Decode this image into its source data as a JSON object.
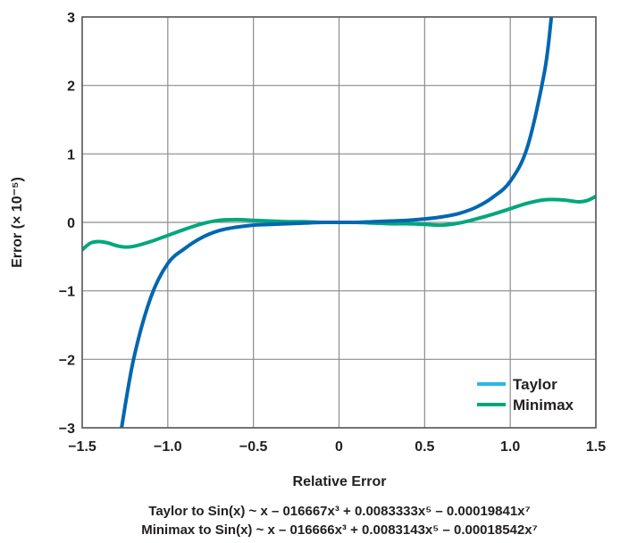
{
  "chart_data": {
    "type": "line",
    "xlabel": "Relative Error",
    "ylabel": "Error (× 10⁻⁵)",
    "xlim": [
      -1.5,
      1.5
    ],
    "ylim": [
      -3,
      3
    ],
    "xticks": [
      -1.5,
      -1.0,
      -0.5,
      0,
      0.5,
      1.0,
      1.5
    ],
    "xtick_labels": [
      "−1.5",
      "−1.0",
      "−0.5",
      "0",
      "0.5",
      "1.0",
      "1.5"
    ],
    "yticks": [
      -3,
      -2,
      -1,
      0,
      1,
      2,
      3
    ],
    "ytick_labels": [
      "−3",
      "−2",
      "−1",
      "0",
      "1",
      "2",
      "3"
    ],
    "grid": true,
    "legend_position": "bottom-right",
    "series": [
      {
        "name": "Taylor",
        "color": "#0067b1",
        "legend_color": "#29b8e5",
        "x": [
          -1.27,
          -1.2,
          -1.1,
          -1.0,
          -0.9,
          -0.8,
          -0.7,
          -0.6,
          -0.5,
          -0.4,
          -0.3,
          -0.2,
          -0.1,
          0,
          0.1,
          0.2,
          0.3,
          0.4,
          0.5,
          0.6,
          0.7,
          0.8,
          0.9,
          1.0,
          1.1,
          1.2,
          1.24
        ],
        "values": [
          -3.0,
          -2.0,
          -1.1,
          -0.6,
          -0.38,
          -0.22,
          -0.12,
          -0.07,
          -0.04,
          -0.03,
          -0.02,
          -0.01,
          0.0,
          0.0,
          0.0,
          0.01,
          0.02,
          0.03,
          0.05,
          0.08,
          0.13,
          0.22,
          0.37,
          0.6,
          1.1,
          2.2,
          3.0
        ]
      },
      {
        "name": "Minimax",
        "color": "#00a77e",
        "legend_color": "#00a77e",
        "x": [
          -1.5,
          -1.45,
          -1.4,
          -1.35,
          -1.3,
          -1.25,
          -1.2,
          -1.1,
          -1.0,
          -0.9,
          -0.8,
          -0.7,
          -0.6,
          -0.5,
          -0.4,
          -0.3,
          -0.2,
          -0.1,
          0,
          0.1,
          0.2,
          0.3,
          0.4,
          0.5,
          0.6,
          0.7,
          0.8,
          0.9,
          1.0,
          1.1,
          1.2,
          1.3,
          1.4,
          1.45,
          1.5
        ],
        "values": [
          -0.4,
          -0.3,
          -0.28,
          -0.3,
          -0.34,
          -0.36,
          -0.35,
          -0.28,
          -0.19,
          -0.1,
          -0.02,
          0.03,
          0.04,
          0.03,
          0.02,
          0.01,
          0.01,
          0.0,
          0.0,
          0.0,
          -0.01,
          -0.02,
          -0.02,
          -0.03,
          -0.04,
          -0.01,
          0.05,
          0.12,
          0.2,
          0.28,
          0.33,
          0.33,
          0.3,
          0.32,
          0.38
        ]
      }
    ]
  },
  "captions": {
    "taylor": "Taylor to Sin(x) ~ x – 016667x³ + 0.0083333x⁵ – 0.00019841x⁷",
    "minimax": "Minimax to Sin(x) ~ x – 016666x³ + 0.0083143x⁵ – 0.00018542x⁷"
  }
}
